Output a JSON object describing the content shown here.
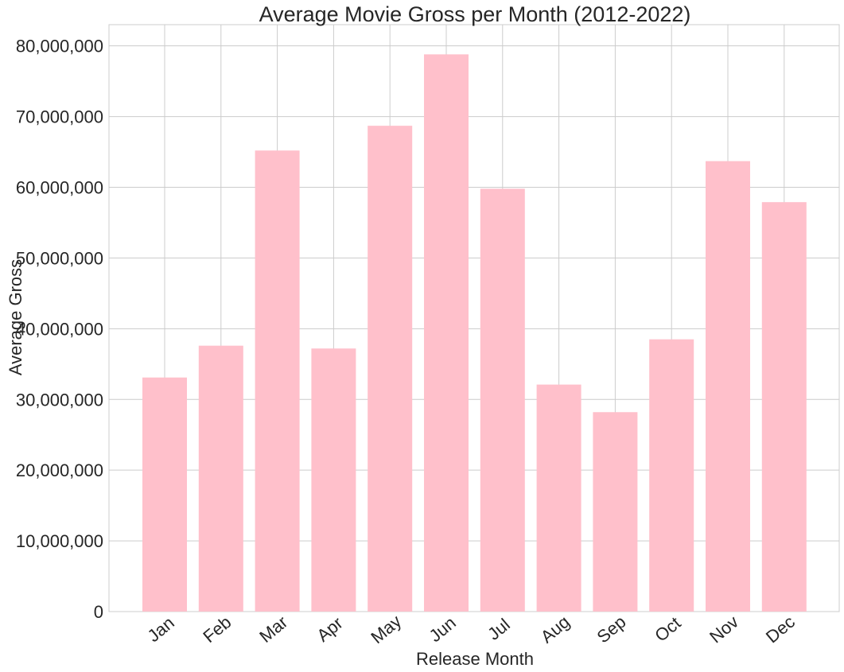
{
  "chart_data": {
    "type": "bar",
    "title": "Average Movie Gross per Month (2012-2022)",
    "xlabel": "Release Month",
    "ylabel": "Average Gross",
    "categories": [
      "Jan",
      "Feb",
      "Mar",
      "Apr",
      "May",
      "Jun",
      "Jul",
      "Aug",
      "Sep",
      "Oct",
      "Nov",
      "Dec"
    ],
    "values": [
      33100000,
      37600000,
      65200000,
      37200000,
      68700000,
      78800000,
      59800000,
      32100000,
      28200000,
      38500000,
      63700000,
      57900000
    ],
    "ylim": [
      0,
      83000000
    ],
    "yticks": [
      0,
      10000000,
      20000000,
      30000000,
      40000000,
      50000000,
      60000000,
      70000000,
      80000000
    ],
    "ytick_labels": [
      "0",
      "10,000,000",
      "20,000,000",
      "30,000,000",
      "40,000,000",
      "50,000,000",
      "60,000,000",
      "70,000,000",
      "80,000,000"
    ],
    "grid": true,
    "bar_color": "#ffc0cb",
    "grid_color": "#cccccc",
    "text_color": "#262626"
  }
}
